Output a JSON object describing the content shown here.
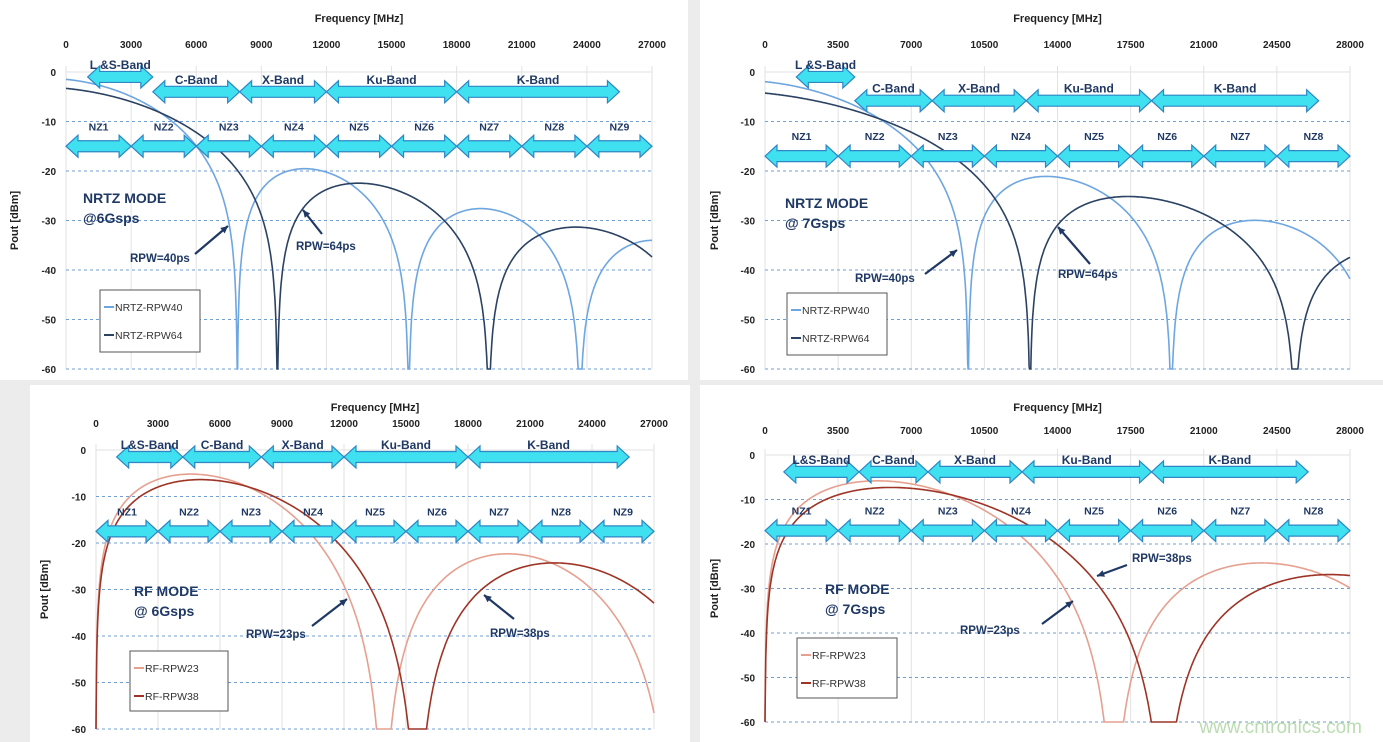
{
  "watermark": "www.cntronics.com",
  "chart_data": [
    {
      "type": "line",
      "xlabel": "Frequency [MHz]",
      "ylabel": "Pout [dBm]",
      "xlim": [
        0,
        27000
      ],
      "ylim": [
        -60,
        0
      ],
      "xticks": [
        0,
        3000,
        6000,
        9000,
        12000,
        15000,
        18000,
        21000,
        24000,
        27000
      ],
      "yticks": [
        0,
        -10,
        -20,
        -30,
        -40,
        -50,
        -60
      ],
      "grid": true,
      "legend_position": "bottom-left",
      "mode_label": [
        "NRTZ MODE",
        "@6Gsps"
      ],
      "mode": "NRTZ",
      "sample_rate_gsps": 6,
      "bands": [
        {
          "label": "L &S-Band",
          "from": 1000,
          "to": 4000,
          "level": -1
        },
        {
          "label": "C-Band",
          "from": 4000,
          "to": 8000,
          "level": -4
        },
        {
          "label": "X-Band",
          "from": 8000,
          "to": 12000,
          "level": -4
        },
        {
          "label": "Ku-Band",
          "from": 12000,
          "to": 18000,
          "level": -4
        },
        {
          "label": "K-Band",
          "from": 18000,
          "to": 25500,
          "level": -4
        }
      ],
      "nyquist_zones": {
        "labels": [
          "NZ1",
          "NZ2",
          "NZ3",
          "NZ4",
          "NZ5",
          "NZ6",
          "NZ7",
          "NZ8",
          "NZ9"
        ],
        "width_mhz": 3000,
        "level": -15
      },
      "series": [
        {
          "name": "NRTZ-RPW40",
          "rpw_ps": 40,
          "color": "#6ea6e0",
          "annotation": "RPW=40ps"
        },
        {
          "name": "NRTZ-RPW64",
          "rpw_ps": 64,
          "color": "#2b4263",
          "annotation": "RPW=64ps"
        }
      ]
    },
    {
      "type": "line",
      "xlabel": "Frequency [MHz]",
      "ylabel": "Pout [dBm]",
      "xlim": [
        0,
        28000
      ],
      "ylim": [
        -60,
        0
      ],
      "xticks": [
        0,
        3500,
        7000,
        10500,
        14000,
        17500,
        21000,
        24500,
        28000
      ],
      "yticks": [
        0,
        -10,
        -20,
        -30,
        -40,
        -50,
        -60
      ],
      "grid": true,
      "legend_position": "bottom-left",
      "mode_label": [
        "NRTZ MODE",
        "@ 7Gsps"
      ],
      "mode": "NRTZ",
      "sample_rate_gsps": 7,
      "bands": [
        {
          "label": "L &S-Band",
          "from": 1500,
          "to": 4300,
          "level": -1
        },
        {
          "label": "C-Band",
          "from": 4300,
          "to": 8000,
          "level": -5.8
        },
        {
          "label": "X-Band",
          "from": 8000,
          "to": 12500,
          "level": -5.8
        },
        {
          "label": "Ku-Band",
          "from": 12500,
          "to": 18500,
          "level": -5.8
        },
        {
          "label": "K-Band",
          "from": 18500,
          "to": 26500,
          "level": -5.8
        }
      ],
      "nyquist_zones": {
        "labels": [
          "NZ1",
          "NZ2",
          "NZ3",
          "NZ4",
          "NZ5",
          "NZ6",
          "NZ7",
          "NZ8"
        ],
        "width_mhz": 3500,
        "level": -17
      },
      "series": [
        {
          "name": "NRTZ-RPW40",
          "rpw_ps": 40,
          "color": "#6ea6e0",
          "annotation": "RPW=40ps"
        },
        {
          "name": "NRTZ-RPW64",
          "rpw_ps": 64,
          "color": "#2b4263",
          "annotation": "RPW=64ps"
        }
      ]
    },
    {
      "type": "line",
      "xlabel": "Frequency [MHz]",
      "ylabel": "Pout [dBm]",
      "xlim": [
        0,
        27000
      ],
      "ylim": [
        -60,
        0
      ],
      "xticks": [
        0,
        3000,
        6000,
        9000,
        12000,
        15000,
        18000,
        21000,
        24000,
        27000
      ],
      "yticks": [
        0,
        -10,
        -20,
        -30,
        -40,
        -50,
        -60
      ],
      "grid": true,
      "legend_position": "bottom-left",
      "mode_label": [
        "RF MODE",
        "@ 6Gsps"
      ],
      "mode": "RF",
      "sample_rate_gsps": 6,
      "bands": [
        {
          "label": "L&S-Band",
          "from": 1000,
          "to": 4200,
          "level": -1.5
        },
        {
          "label": "C-Band",
          "from": 4200,
          "to": 8000,
          "level": -1.5
        },
        {
          "label": "X-Band",
          "from": 8000,
          "to": 12000,
          "level": -1.5
        },
        {
          "label": "Ku-Band",
          "from": 12000,
          "to": 18000,
          "level": -1.5
        },
        {
          "label": "K-Band",
          "from": 18000,
          "to": 25800,
          "level": -1.5
        }
      ],
      "nyquist_zones": {
        "labels": [
          "NZ1",
          "NZ2",
          "NZ3",
          "NZ4",
          "NZ5",
          "NZ6",
          "NZ7",
          "NZ8",
          "NZ9"
        ],
        "width_mhz": 3000,
        "level": -17.5
      },
      "series": [
        {
          "name": "RF-RPW23",
          "rpw_ps": 23,
          "color": "#e6a08f",
          "annotation": "RPW=23ps"
        },
        {
          "name": "RF-RPW38",
          "rpw_ps": 38,
          "color": "#9e3426",
          "annotation": "RPW=38ps"
        }
      ]
    },
    {
      "type": "line",
      "xlabel": "Frequency [MHz]",
      "ylabel": "Pout [dBm]",
      "xlim": [
        0,
        28000
      ],
      "ylim": [
        -60,
        0
      ],
      "xticks": [
        0,
        3500,
        7000,
        10500,
        14000,
        17500,
        21000,
        24500,
        28000
      ],
      "yticks": [
        0,
        -10,
        -20,
        -30,
        -40,
        -50,
        -60
      ],
      "grid": true,
      "legend_position": "bottom-left",
      "mode_label": [
        "RF MODE",
        "@ 7Gsps"
      ],
      "mode": "RF",
      "sample_rate_gsps": 7,
      "bands": [
        {
          "label": "L&S-Band",
          "from": 900,
          "to": 4500,
          "level": -3.8
        },
        {
          "label": "C-Band",
          "from": 4500,
          "to": 7800,
          "level": -3.8
        },
        {
          "label": "X-Band",
          "from": 7800,
          "to": 12300,
          "level": -3.8
        },
        {
          "label": "Ku-Band",
          "from": 12300,
          "to": 18500,
          "level": -3.8
        },
        {
          "label": "K-Band",
          "from": 18500,
          "to": 26000,
          "level": -3.8
        }
      ],
      "nyquist_zones": {
        "labels": [
          "NZ1",
          "NZ2",
          "NZ3",
          "NZ4",
          "NZ5",
          "NZ6",
          "NZ7",
          "NZ8"
        ],
        "width_mhz": 3500,
        "level": -17
      },
      "series": [
        {
          "name": "RF-RPW23",
          "rpw_ps": 23,
          "color": "#e6a08f",
          "annotation": "RPW=23ps"
        },
        {
          "name": "RF-RPW38",
          "rpw_ps": 38,
          "color": "#9e3426",
          "annotation": "RPW=38ps"
        }
      ]
    }
  ]
}
